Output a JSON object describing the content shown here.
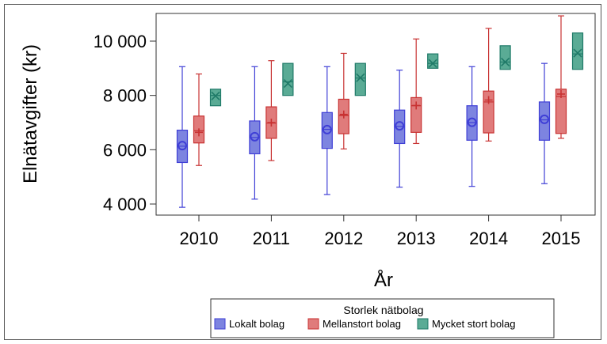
{
  "chart_data": {
    "type": "box",
    "xlabel": "År",
    "ylabel": "Elnätavgifter (kr)",
    "ylim": [
      3800,
      11100
    ],
    "yticks": [
      4000,
      6000,
      8000,
      10000
    ],
    "ytick_labels": [
      "4 000",
      "6 000",
      "8 000",
      "10 000"
    ],
    "categories": [
      "2010",
      "2011",
      "2012",
      "2013",
      "2014",
      "2015"
    ],
    "legend": {
      "title": "Storlek nätbolag",
      "position": "bottom"
    },
    "grid": false,
    "series": [
      {
        "name": "Lokalt bolag",
        "color": "#3f3fd6",
        "fill": "#7d84e0",
        "mean_marker": "circle",
        "boxes": [
          {
            "min": 3880,
            "q1": 5530,
            "median": 6130,
            "q3": 6720,
            "max": 9060,
            "mean": 6150
          },
          {
            "min": 4180,
            "q1": 5850,
            "median": 6450,
            "q3": 7060,
            "max": 9060,
            "mean": 6480
          },
          {
            "min": 4350,
            "q1": 6050,
            "median": 6750,
            "q3": 7370,
            "max": 9060,
            "mean": 6740
          },
          {
            "min": 4620,
            "q1": 6230,
            "median": 6860,
            "q3": 7460,
            "max": 8930,
            "mean": 6880
          },
          {
            "min": 4650,
            "q1": 6350,
            "median": 7000,
            "q3": 7620,
            "max": 9060,
            "mean": 7010
          },
          {
            "min": 4750,
            "q1": 6350,
            "median": 7100,
            "q3": 7760,
            "max": 9180,
            "mean": 7120
          }
        ]
      },
      {
        "name": "Mellanstort bolag",
        "color": "#c83232",
        "fill": "#e07b7b",
        "mean_marker": "plus",
        "boxes": [
          {
            "min": 5420,
            "q1": 6250,
            "median": 6700,
            "q3": 7240,
            "max": 8790,
            "mean": 6640
          },
          {
            "min": 5600,
            "q1": 6420,
            "median": 6980,
            "q3": 7580,
            "max": 9280,
            "mean": 7000
          },
          {
            "min": 6030,
            "q1": 6590,
            "median": 7260,
            "q3": 7860,
            "max": 9550,
            "mean": 7300
          },
          {
            "min": 6230,
            "q1": 6640,
            "median": 7620,
            "q3": 7920,
            "max": 10080,
            "mean": 7630
          },
          {
            "min": 6320,
            "q1": 6620,
            "median": 7760,
            "q3": 8160,
            "max": 10470,
            "mean": 7830
          },
          {
            "min": 6420,
            "q1": 6600,
            "median": 7960,
            "q3": 8230,
            "max": 10930,
            "mean": 8050
          }
        ]
      },
      {
        "name": "Mycket stort bolag",
        "color": "#1f7a68",
        "fill": "#5aab95",
        "mean_marker": "x",
        "boxes": [
          {
            "min": 7620,
            "q1": 7620,
            "median": 8000,
            "q3": 8230,
            "max": 8230,
            "mean": 7980
          },
          {
            "min": 8000,
            "q1": 8000,
            "median": 8500,
            "q3": 9180,
            "max": 9180,
            "mean": 8440
          },
          {
            "min": 8000,
            "q1": 8000,
            "median": 8640,
            "q3": 9180,
            "max": 9180,
            "mean": 8650
          },
          {
            "min": 9000,
            "q1": 9000,
            "median": 9180,
            "q3": 9530,
            "max": 9530,
            "mean": 9180
          },
          {
            "min": 8960,
            "q1": 8960,
            "median": 9230,
            "q3": 9830,
            "max": 9830,
            "mean": 9230
          },
          {
            "min": 8960,
            "q1": 8960,
            "median": 9530,
            "q3": 10300,
            "max": 10300,
            "mean": 9560
          }
        ]
      }
    ]
  }
}
